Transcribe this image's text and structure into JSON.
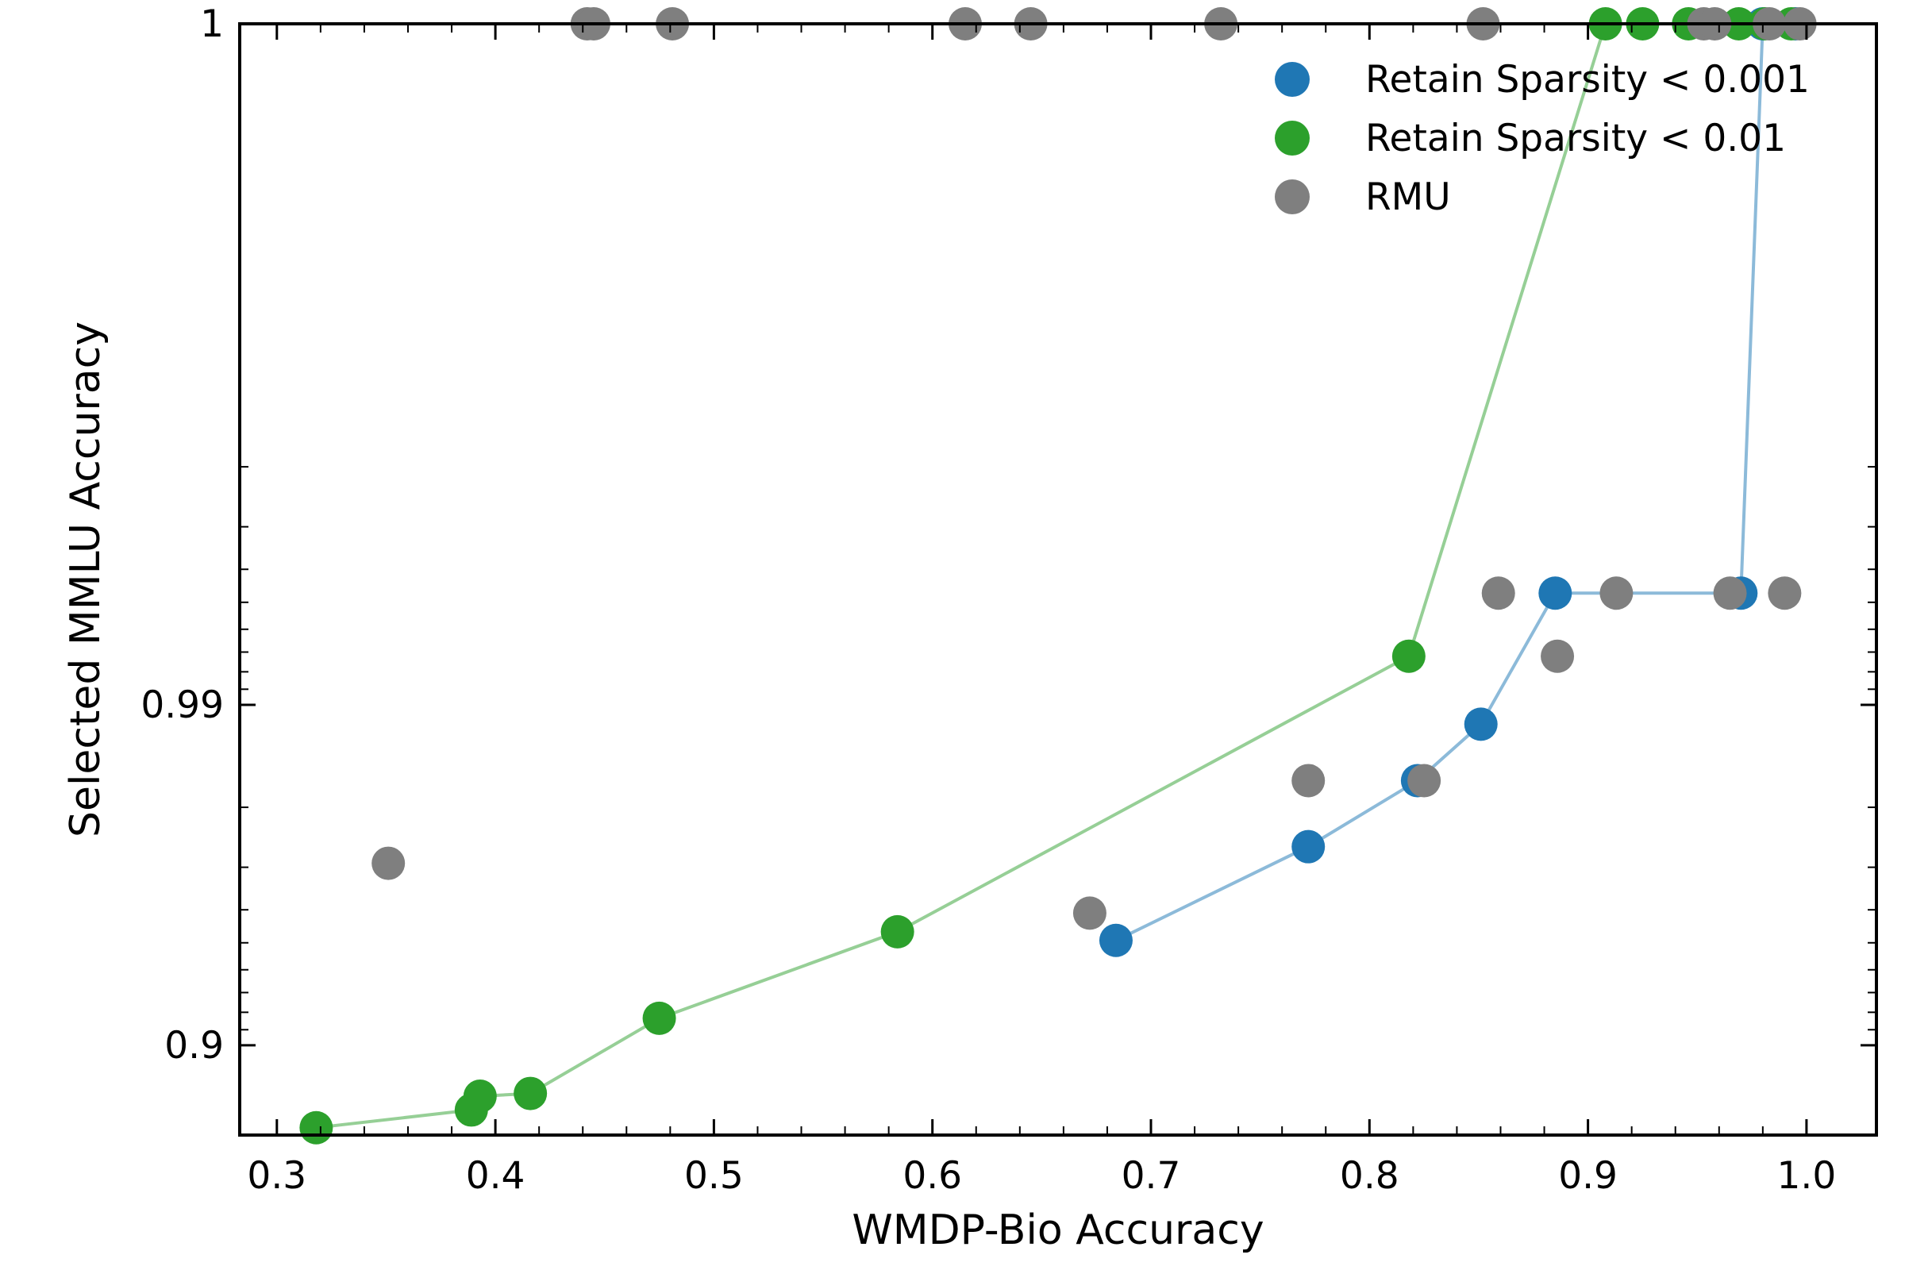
{
  "chart_data": {
    "type": "scatter",
    "title": "",
    "xlabel": "WMDP-Bio Accuracy",
    "ylabel": "Selected MMLU Accuracy",
    "xlim": [
      0.283,
      1.032
    ],
    "x_ticks": [
      0.3,
      0.4,
      0.5,
      0.6,
      0.7,
      0.8,
      0.9,
      1.0
    ],
    "x_tick_labels": [
      "0.3",
      "0.4",
      "0.5",
      "0.6",
      "0.7",
      "0.8",
      "0.9",
      "1.0"
    ],
    "y_scale": "log of (1 - accuracy), inverted",
    "ylim": [
      0.8165,
      1.0015
    ],
    "y_ticks": [
      0.9,
      0.99,
      1
    ],
    "y_tick_labels": [
      "0.9",
      "0.99",
      "1"
    ],
    "grid": false,
    "legend_position": "top-right",
    "series": [
      {
        "name": "Retain Sparsity < 0.001",
        "color": "#1f77b4",
        "line_color": "#8cbad9",
        "connected": true,
        "points": [
          {
            "x": 0.684,
            "y": 0.9508
          },
          {
            "x": 0.772,
            "y": 0.9739
          },
          {
            "x": 0.822,
            "y": 0.9833
          },
          {
            "x": 0.851,
            "y": 0.9886
          },
          {
            "x": 0.885,
            "y": 0.9953
          },
          {
            "x": 0.97,
            "y": 0.9953
          },
          {
            "x": 0.98,
            "y": 1.0
          },
          {
            "x": 0.995,
            "y": 1.0
          }
        ]
      },
      {
        "name": "Retain Sparsity < 0.01",
        "color": "#2ca02c",
        "line_color": "#96cf96",
        "connected": true,
        "points": [
          {
            "x": 0.318,
            "y": 0.8254
          },
          {
            "x": 0.389,
            "y": 0.8451
          },
          {
            "x": 0.393,
            "y": 0.8589
          },
          {
            "x": 0.416,
            "y": 0.8615
          },
          {
            "x": 0.475,
            "y": 0.9167
          },
          {
            "x": 0.584,
            "y": 0.9536
          },
          {
            "x": 0.818,
            "y": 0.9928
          },
          {
            "x": 0.908,
            "y": 1.0
          },
          {
            "x": 0.925,
            "y": 1.0
          },
          {
            "x": 0.946,
            "y": 1.0
          },
          {
            "x": 0.969,
            "y": 1.0
          },
          {
            "x": 0.981,
            "y": 1.0
          },
          {
            "x": 0.993,
            "y": 1.0
          }
        ]
      },
      {
        "name": "RMU",
        "color": "#7f7f7f",
        "connected": false,
        "points": [
          {
            "x": 0.351,
            "y": 0.9708
          },
          {
            "x": 0.442,
            "y": 1.0
          },
          {
            "x": 0.445,
            "y": 1.0
          },
          {
            "x": 0.481,
            "y": 1.0
          },
          {
            "x": 0.615,
            "y": 1.0
          },
          {
            "x": 0.645,
            "y": 1.0
          },
          {
            "x": 0.672,
            "y": 0.9591
          },
          {
            "x": 0.732,
            "y": 1.0
          },
          {
            "x": 0.772,
            "y": 0.9833
          },
          {
            "x": 0.825,
            "y": 0.9833
          },
          {
            "x": 0.852,
            "y": 1.0
          },
          {
            "x": 0.859,
            "y": 0.9953
          },
          {
            "x": 0.886,
            "y": 0.9928
          },
          {
            "x": 0.913,
            "y": 0.9953
          },
          {
            "x": 0.953,
            "y": 1.0
          },
          {
            "x": 0.958,
            "y": 1.0
          },
          {
            "x": 0.965,
            "y": 0.9953
          },
          {
            "x": 0.983,
            "y": 1.0
          },
          {
            "x": 0.99,
            "y": 0.9953
          },
          {
            "x": 0.997,
            "y": 1.0
          }
        ]
      }
    ]
  }
}
